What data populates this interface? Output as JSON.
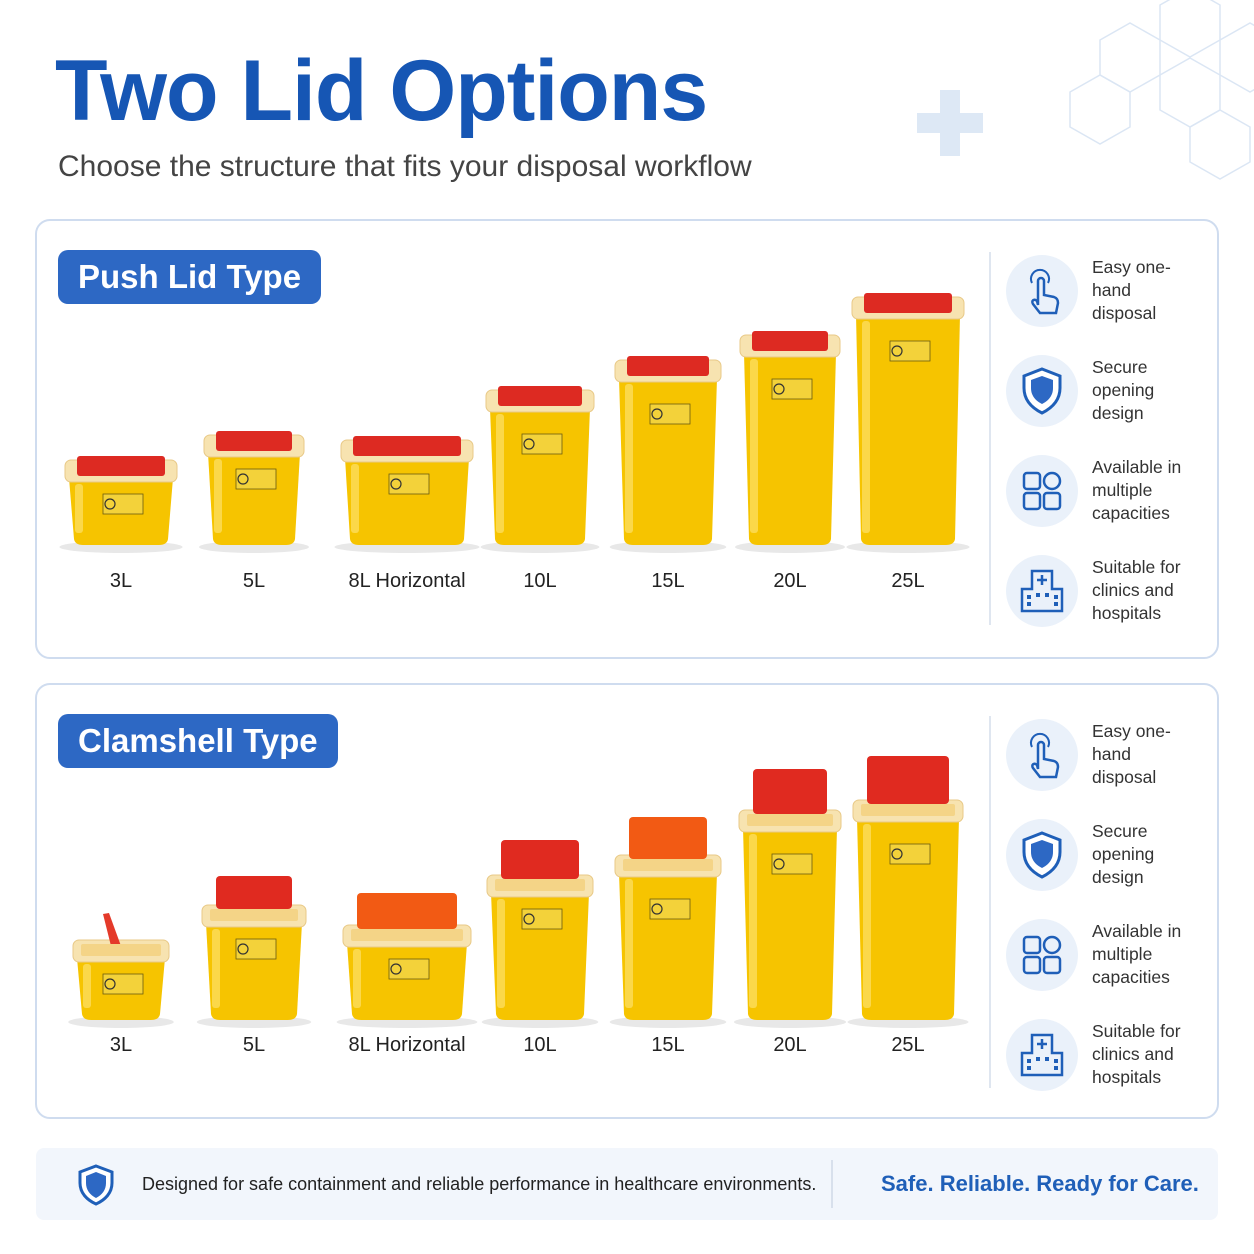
{
  "header": {
    "title": "Two Lid Options",
    "subtitle": "Choose the structure that fits your disposal workflow"
  },
  "sections": [
    {
      "badge": "Push Lid Type",
      "products": [
        "3L",
        "5L",
        "8L Horizontal",
        "10L",
        "15L",
        "20L",
        "25L"
      ],
      "features": [
        "Easy one-hand disposal",
        "Secure opening design",
        "Available in multiple capacities",
        "Suitable for clinics and hospitals"
      ]
    },
    {
      "badge": "Clamshell Type",
      "products": [
        "3L",
        "5L",
        "8L Horizontal",
        "10L",
        "15L",
        "20L",
        "25L"
      ],
      "features": [
        "Easy one-hand disposal",
        "Secure opening design",
        "Available in multiple capacities",
        "Suitable for clinics and hospitals"
      ]
    }
  ],
  "footer": {
    "note": "Designed for safe containment and reliable performance in healthcare environments.",
    "tagline": "Safe. Reliable. Ready for Care."
  }
}
